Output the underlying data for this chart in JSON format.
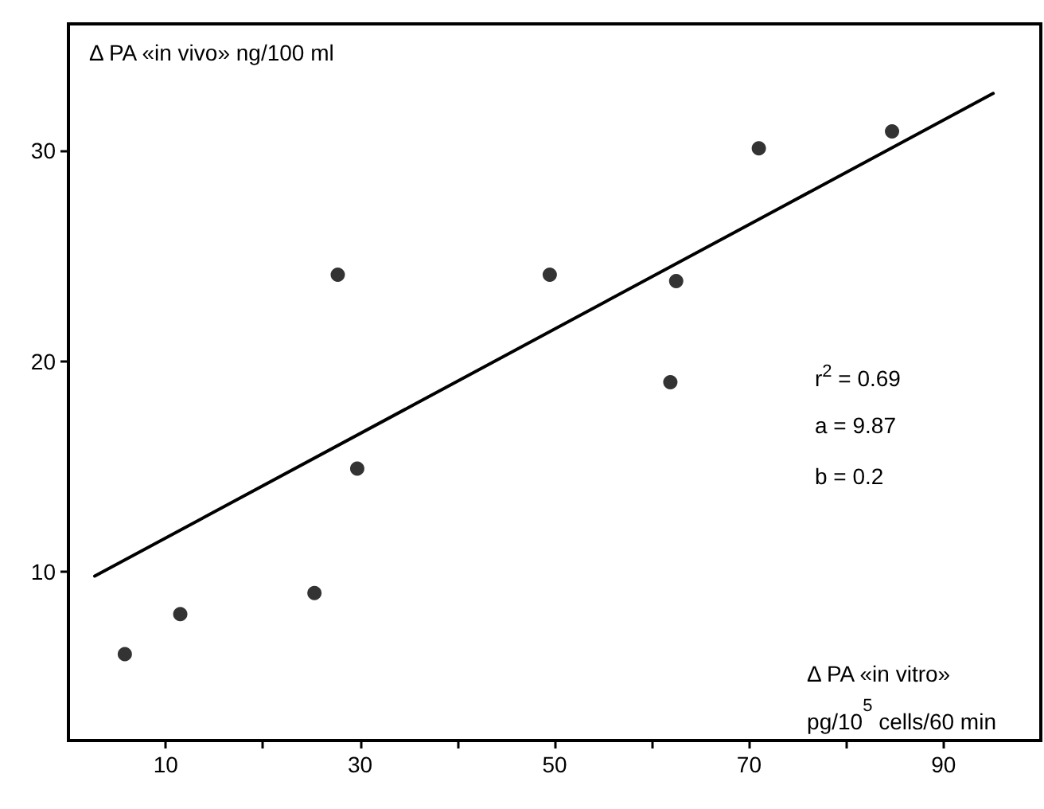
{
  "chart_data": {
    "type": "scatter",
    "xlabel": "Δ PA «in vitro» pg/10$^{5}$ cells/60 min",
    "ylabel": "Δ PA «in vivo» ng/100 ml",
    "xlim": [
      0,
      100
    ],
    "ylim": [
      2,
      36
    ],
    "xticks": [
      10,
      {
        "value": 20,
        "label": null
      },
      30,
      {
        "value": 40,
        "label": null
      },
      50,
      {
        "value": 60,
        "label": null
      },
      70,
      {
        "value": 80,
        "label": null
      },
      90
    ],
    "yticks": [
      10,
      20,
      30
    ],
    "grid": false,
    "marker": "circle",
    "annotations": [
      "r$^{2}$ = 0.69",
      "a = 9.87",
      "b = 0.2"
    ],
    "series": [
      {
        "color": "#000000",
        "x": [
          5.8,
          11.5,
          25.3,
          27.7,
          29.7,
          49.5,
          61.9,
          62.5,
          71.0,
          84.7
        ],
        "values": [
          6.1,
          8.0,
          9.0,
          24.1,
          14.9,
          24.1,
          19.0,
          23.8,
          30.1,
          30.9
        ]
      },
      {
        "type": "line",
        "color": "#000000",
        "marker": "none",
        "line_style": "solid",
        "x": [
          2.7,
          95.1
        ],
        "values": [
          9.8,
          32.7
        ]
      }
    ]
  }
}
